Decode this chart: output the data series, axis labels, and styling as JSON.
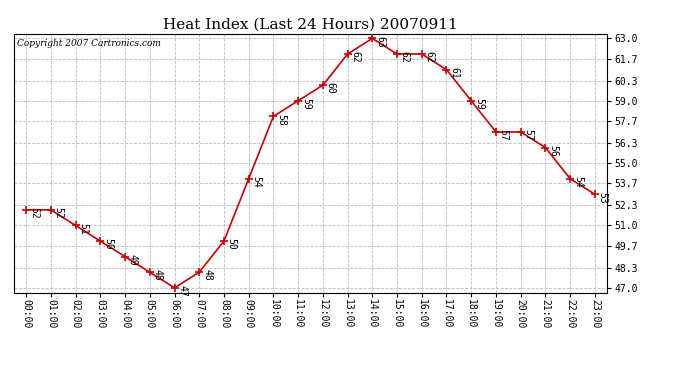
{
  "title": "Heat Index (Last 24 Hours) 20070911",
  "copyright": "Copyright 2007 Cartronics.com",
  "hours": [
    "00:00",
    "01:00",
    "02:00",
    "03:00",
    "04:00",
    "05:00",
    "06:00",
    "07:00",
    "08:00",
    "09:00",
    "10:00",
    "11:00",
    "12:00",
    "13:00",
    "14:00",
    "15:00",
    "16:00",
    "17:00",
    "18:00",
    "19:00",
    "20:00",
    "21:00",
    "22:00",
    "23:00"
  ],
  "values": [
    52,
    52,
    51,
    50,
    49,
    48,
    47,
    48,
    50,
    54,
    58,
    59,
    60,
    62,
    63,
    62,
    62,
    61,
    59,
    57,
    57,
    56,
    54,
    53
  ],
  "ylim_min": 47.0,
  "ylim_max": 63.0,
  "yticks": [
    47.0,
    48.3,
    49.7,
    51.0,
    52.3,
    53.7,
    55.0,
    56.3,
    57.7,
    59.0,
    60.3,
    61.7,
    63.0
  ],
  "line_color": "#cc0000",
  "marker": "+",
  "marker_size": 6,
  "marker_color": "#cc0000",
  "bg_color": "#ffffff",
  "grid_color": "#bbbbbb",
  "title_fontsize": 11,
  "label_fontsize": 7,
  "tick_fontsize": 7,
  "copyright_fontsize": 6.5,
  "fig_width": 6.9,
  "fig_height": 3.75,
  "dpi": 100
}
